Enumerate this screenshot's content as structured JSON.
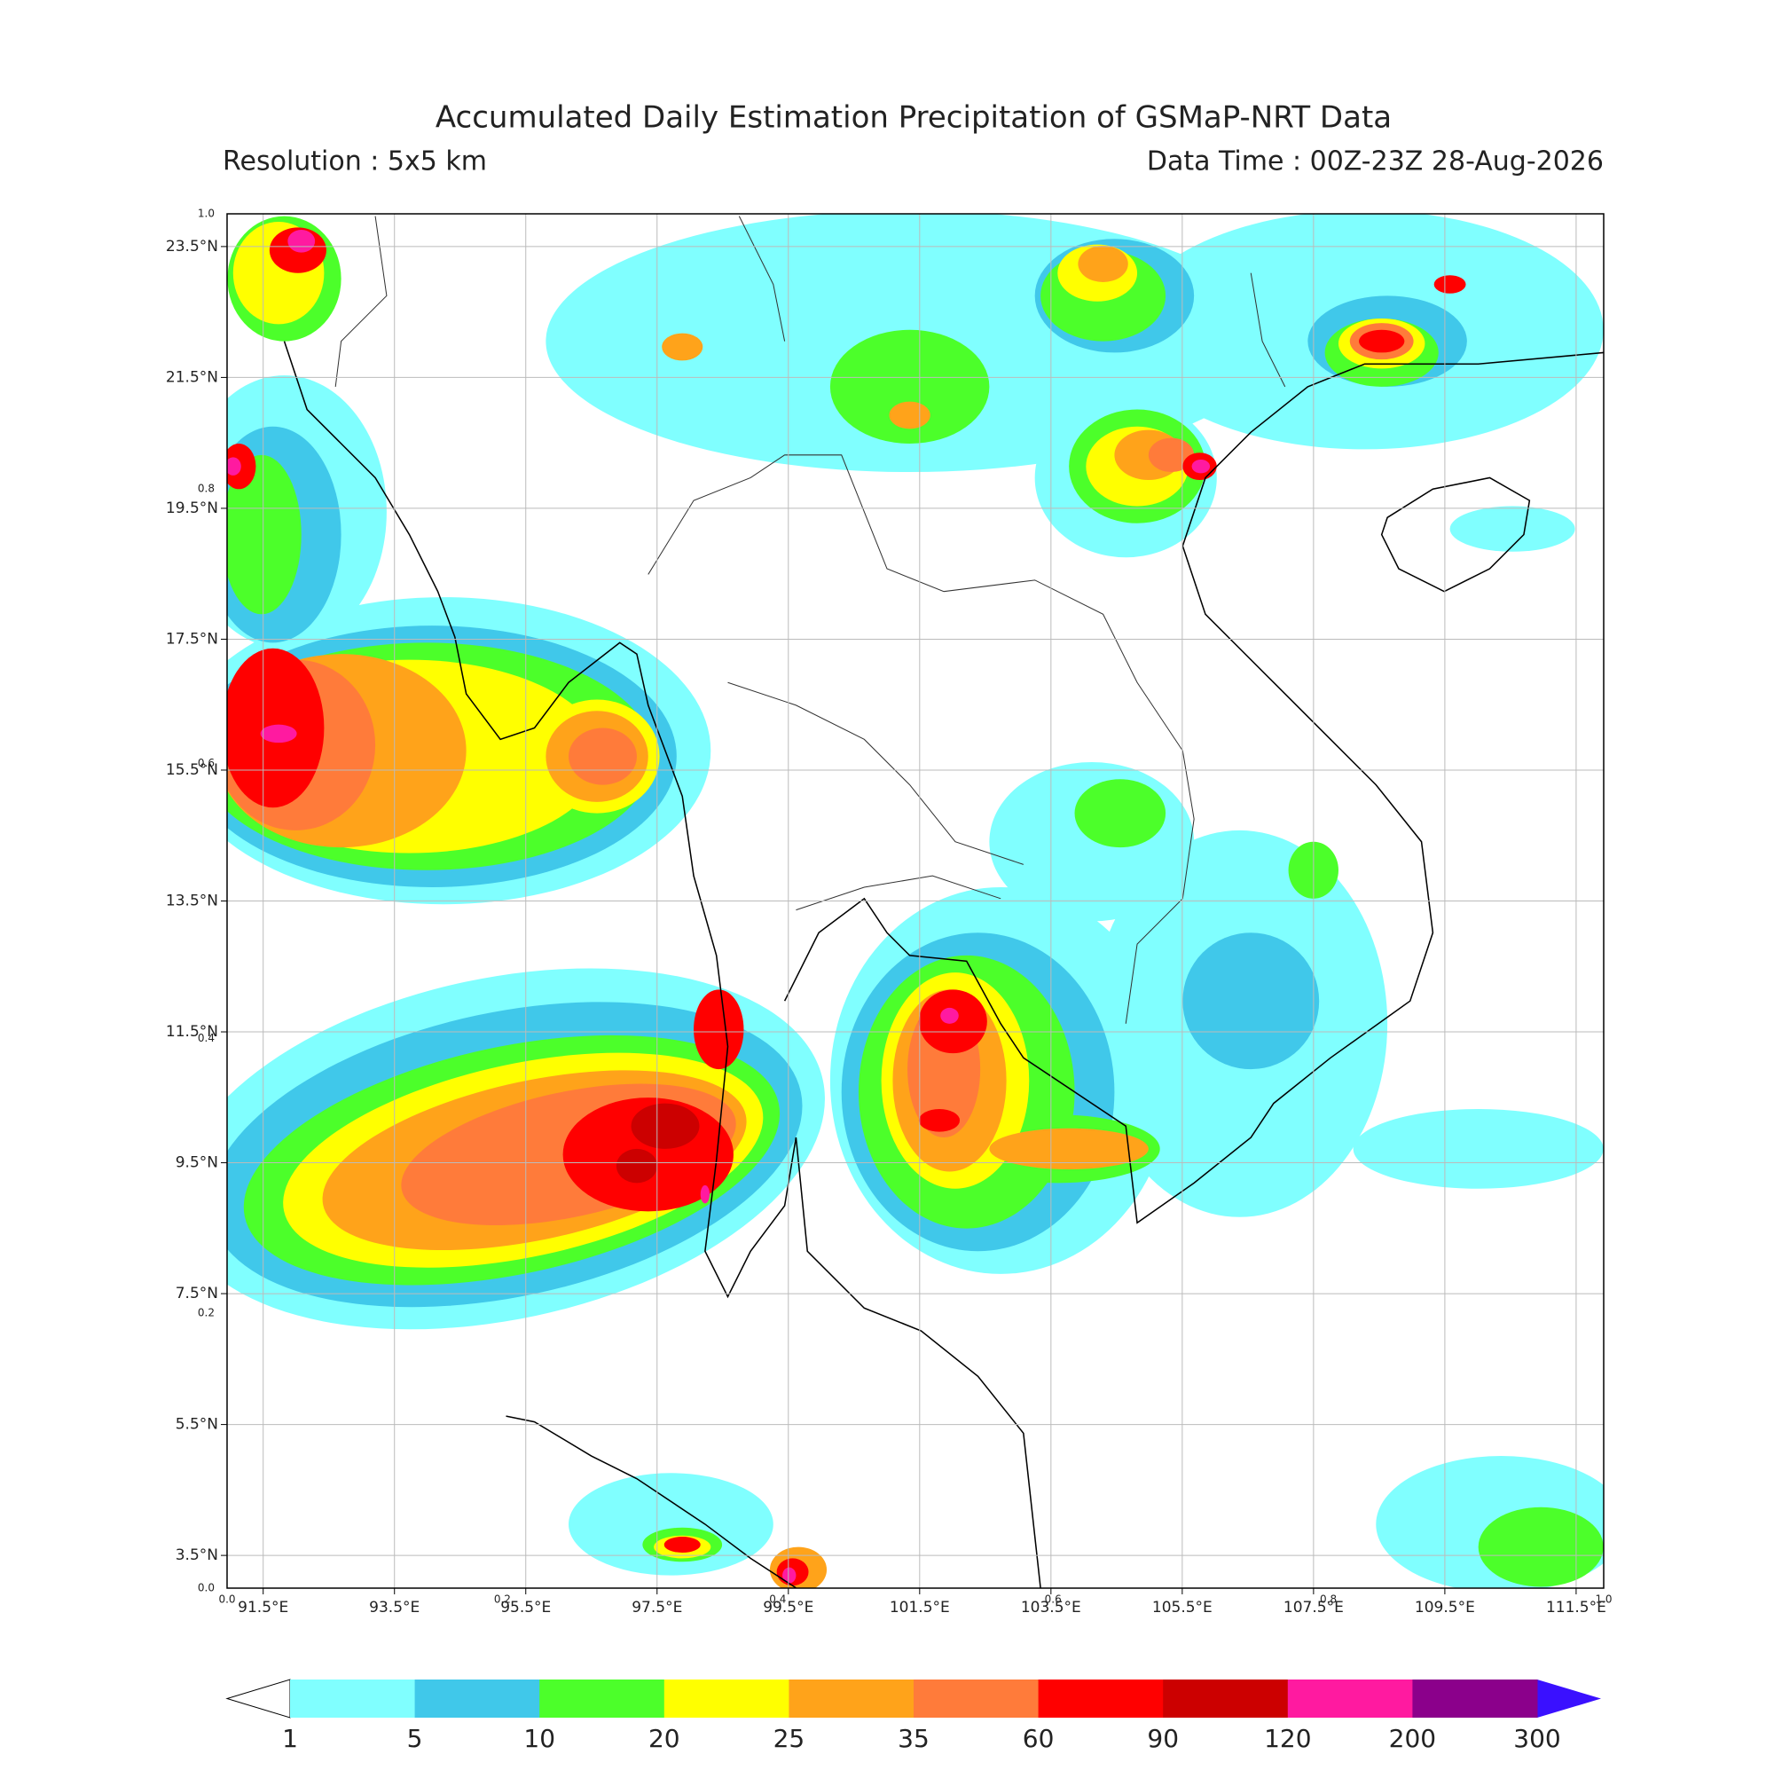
{
  "title": "Accumulated Daily Estimation Precipitation of GSMaP-NRT Data",
  "resolution": "Resolution : 5x5 km",
  "data_time": "Data Time : 00Z-23Z 28-Aug-2026",
  "map": {
    "lon_range": [
      90.95,
      111.92
    ],
    "lat_range": [
      3.0,
      24.0
    ],
    "grid": true,
    "lon_ticks": [
      {
        "value": 91.5,
        "label": "91.5°E"
      },
      {
        "value": 93.5,
        "label": "93.5°E"
      },
      {
        "value": 95.5,
        "label": "95.5°E"
      },
      {
        "value": 97.5,
        "label": "97.5°E"
      },
      {
        "value": 99.5,
        "label": "99.5°E"
      },
      {
        "value": 101.5,
        "label": "101.5°E"
      },
      {
        "value": 103.5,
        "label": "103.5°E"
      },
      {
        "value": 105.5,
        "label": "105.5°E"
      },
      {
        "value": 107.5,
        "label": "107.5°E"
      },
      {
        "value": 109.5,
        "label": "109.5°E"
      },
      {
        "value": 111.5,
        "label": "111.5°E"
      }
    ],
    "lat_ticks": [
      {
        "value": 23.5,
        "label": "23.5°N"
      },
      {
        "value": 21.5,
        "label": "21.5°N"
      },
      {
        "value": 19.5,
        "label": "19.5°N"
      },
      {
        "value": 17.5,
        "label": "17.5°N"
      },
      {
        "value": 15.5,
        "label": "15.5°N"
      },
      {
        "value": 13.5,
        "label": "13.5°N"
      },
      {
        "value": 11.5,
        "label": "11.5°N"
      },
      {
        "value": 9.5,
        "label": "9.5°N"
      },
      {
        "value": 7.5,
        "label": "7.5°N"
      },
      {
        "value": 5.5,
        "label": "5.5°N"
      },
      {
        "value": 3.5,
        "label": "3.5°N"
      }
    ]
  },
  "overlay_axis": {
    "range": [
      0,
      1
    ],
    "ticks": [
      {
        "value": 0,
        "label": "0.0"
      },
      0.2,
      0.4,
      0.6,
      0.8,
      {
        "value": 1,
        "label": "1.0"
      }
    ]
  },
  "colorbar": {
    "levels": [
      1,
      5,
      10,
      20,
      25,
      35,
      60,
      90,
      120,
      200,
      300
    ],
    "colors": [
      "#80ffff",
      "#40c8ea",
      "#4cff2a",
      "#ffff00",
      "#ffa31a",
      "#ff7b3a",
      "#ff0000",
      "#cc0000",
      "#ff1aa0",
      "#8b008b"
    ],
    "under_color": "#ffffff",
    "over_color": "#3a10ff"
  }
}
